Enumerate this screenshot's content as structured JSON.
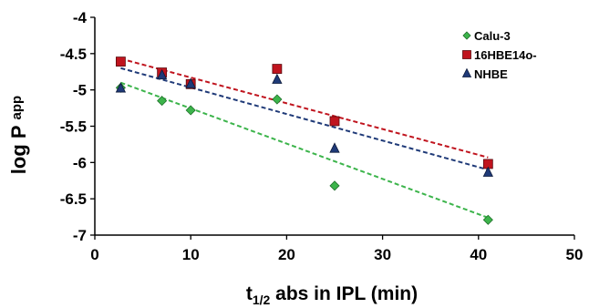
{
  "chart_data": {
    "type": "scatter",
    "xlabel": {
      "main": "t",
      "sub": "1/2",
      "rest": " abs in IPL (min)"
    },
    "ylabel": {
      "main": "log P",
      "sub": "app"
    },
    "xlim": [
      0,
      50
    ],
    "ylim": [
      -7,
      -4
    ],
    "xticks": [
      0,
      10,
      20,
      30,
      40,
      50
    ],
    "yticks": [
      -4,
      -4.5,
      -5,
      -5.5,
      -6,
      -6.5,
      -7
    ],
    "legend_position": "top-right",
    "grid": false,
    "series": [
      {
        "name": "Calu-3",
        "marker": "diamond",
        "color": "#3cb44b",
        "x": [
          2.7,
          7,
          10,
          19,
          25,
          41
        ],
        "y": [
          -4.97,
          -5.15,
          -5.28,
          -5.13,
          -6.32,
          -6.79
        ],
        "trendline": {
          "x": [
            2.7,
            41
          ],
          "y": [
            -4.9,
            -6.76
          ]
        }
      },
      {
        "name": "16HBE14o-",
        "marker": "square",
        "color": "#c0141e",
        "x": [
          2.7,
          7,
          10,
          19,
          25,
          41
        ],
        "y": [
          -4.61,
          -4.76,
          -4.92,
          -4.71,
          -5.43,
          -6.02
        ],
        "trendline": {
          "x": [
            2.7,
            41
          ],
          "y": [
            -4.57,
            -5.93
          ]
        }
      },
      {
        "name": "NHBE",
        "marker": "triangle",
        "color": "#1f3a78",
        "x": [
          2.7,
          7,
          10,
          19,
          25,
          41
        ],
        "y": [
          -4.98,
          -4.8,
          -4.92,
          -4.86,
          -5.81,
          -6.14
        ],
        "trendline": {
          "x": [
            2.7,
            41
          ],
          "y": [
            -4.7,
            -6.1
          ]
        }
      }
    ]
  }
}
